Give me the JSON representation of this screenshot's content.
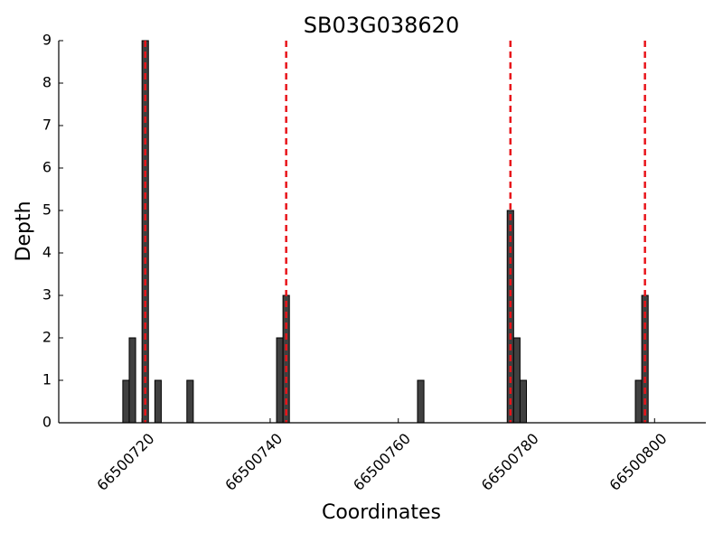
{
  "chart_data": {
    "type": "bar",
    "title": "SB03G038620",
    "xlabel": "Coordinates",
    "ylabel": "Depth",
    "x": [
      66500717,
      66500718,
      66500720,
      66500722,
      66500727,
      66500741,
      66500742,
      66500763,
      66500777,
      66500778,
      66500779,
      66500797,
      66500798
    ],
    "values": [
      1,
      2,
      9,
      1,
      1,
      2,
      3,
      1,
      5,
      2,
      1,
      1,
      3
    ],
    "color": "#404040",
    "vlines": [
      66500720.5,
      66500742.5,
      66500777.5,
      66500798.5
    ],
    "vline_color": "#e8141a",
    "xlim": [
      66500707,
      66500808
    ],
    "xticks": [
      66500720,
      66500740,
      66500760,
      66500780,
      66500800
    ],
    "ylim": [
      0,
      9
    ],
    "yticks": [
      0,
      1,
      2,
      3,
      4,
      5,
      6,
      7,
      8,
      9
    ],
    "grid": false
  }
}
